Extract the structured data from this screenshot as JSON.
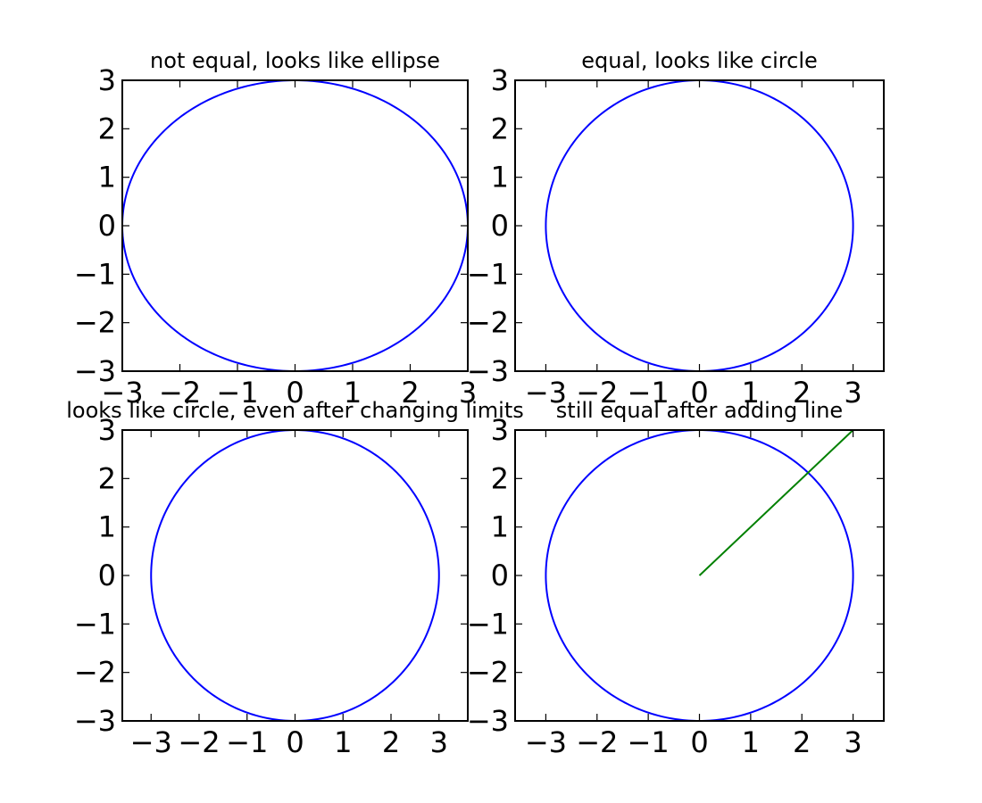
{
  "chart_data": [
    {
      "type": "line",
      "title": "not equal, looks like ellipse",
      "xlim": [
        -3,
        3
      ],
      "ylim": [
        -3,
        3
      ],
      "xticks": [
        -3,
        -2,
        -1,
        0,
        1,
        2,
        3
      ],
      "yticks": [
        -3,
        -2,
        -1,
        0,
        1,
        2,
        3
      ],
      "grid": false,
      "series": [
        {
          "kind": "circle",
          "center": [
            0,
            0
          ],
          "radius": 3,
          "color": "#0000ff"
        }
      ]
    },
    {
      "type": "line",
      "title": "equal, looks like circle",
      "xlim": [
        -3.6,
        3.6
      ],
      "ylim": [
        -3,
        3
      ],
      "xticks": [
        -3,
        -2,
        -1,
        0,
        1,
        2,
        3
      ],
      "yticks": [
        -3,
        -2,
        -1,
        0,
        1,
        2,
        3
      ],
      "grid": false,
      "series": [
        {
          "kind": "circle",
          "center": [
            0,
            0
          ],
          "radius": 3,
          "color": "#0000ff"
        }
      ]
    },
    {
      "type": "line",
      "title": "looks like circle, even after changing limits",
      "xlim": [
        -3.6,
        3.6
      ],
      "ylim": [
        -3,
        3
      ],
      "xticks": [
        -3,
        -2,
        -1,
        0,
        1,
        2,
        3
      ],
      "yticks": [
        -3,
        -2,
        -1,
        0,
        1,
        2,
        3
      ],
      "grid": false,
      "series": [
        {
          "kind": "circle",
          "center": [
            0,
            0
          ],
          "radius": 3,
          "color": "#0000ff"
        }
      ]
    },
    {
      "type": "line",
      "title": "still equal after adding line",
      "xlim": [
        -3.6,
        3.6
      ],
      "ylim": [
        -3,
        3
      ],
      "xticks": [
        -3,
        -2,
        -1,
        0,
        1,
        2,
        3
      ],
      "yticks": [
        -3,
        -2,
        -1,
        0,
        1,
        2,
        3
      ],
      "grid": false,
      "series": [
        {
          "kind": "circle",
          "center": [
            0,
            0
          ],
          "radius": 3,
          "color": "#0000ff"
        },
        {
          "kind": "segment",
          "x": [
            0,
            3
          ],
          "y": [
            0,
            3
          ],
          "color": "#008000"
        }
      ]
    }
  ]
}
